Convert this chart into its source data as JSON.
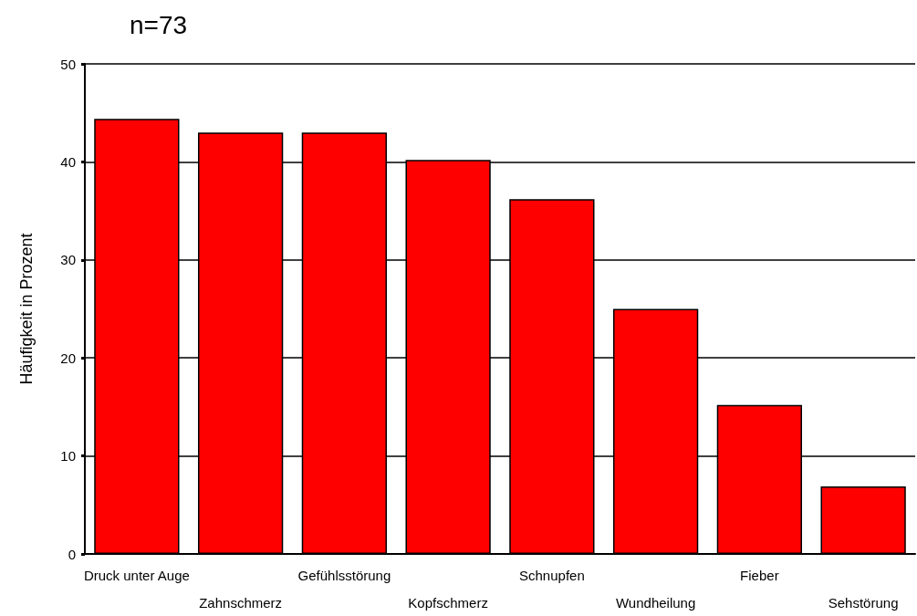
{
  "chart_data": {
    "type": "bar",
    "title": "n=73",
    "ylabel": "Häufigkeit in Prozent",
    "categories": [
      "Druck unter Auge",
      "Zahnschmerz",
      "Gefühlsstörung",
      "Kopfschmerz",
      "Schnupfen",
      "Wundheilung",
      "Fieber",
      "Sehstörung"
    ],
    "values": [
      44.4,
      43.0,
      43.0,
      40.2,
      36.2,
      25.0,
      15.2,
      6.9
    ],
    "color": "#ff0000",
    "ylim": [
      0,
      50
    ],
    "yticks": [
      0,
      10,
      20,
      30,
      40,
      50
    ],
    "grid": "y"
  }
}
